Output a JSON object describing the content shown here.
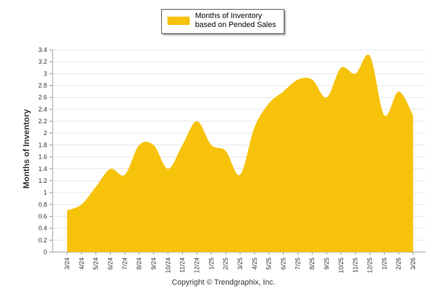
{
  "chart_data": {
    "type": "area",
    "title": "",
    "xlabel": "",
    "ylabel": "Months of Inventory",
    "ylim": [
      0,
      3.4
    ],
    "yticks": [
      "0",
      "0.2",
      "0.4",
      "0.6",
      "0.8",
      "1",
      "1.2",
      "1.4",
      "1.6",
      "1.8",
      "2",
      "2.2",
      "2.4",
      "2.6",
      "2.8",
      "3",
      "3.2",
      "3.4"
    ],
    "categories": [
      "3/24",
      "4/24",
      "5/24",
      "6/24",
      "7/24",
      "8/24",
      "9/24",
      "10/24",
      "11/24",
      "12/24",
      "1/25",
      "2/25",
      "3/25",
      "4/25",
      "5/25",
      "6/25",
      "7/25",
      "8/25",
      "9/25",
      "10/25",
      "11/25",
      "12/25",
      "1/26",
      "2/26",
      "3/26"
    ],
    "series": [
      {
        "name": "Months of Inventory based on Pended Sales",
        "color": "#f7c20a",
        "values": [
          0.7,
          0.8,
          1.1,
          1.4,
          1.3,
          1.8,
          1.8,
          1.4,
          1.8,
          2.2,
          1.8,
          1.7,
          1.3,
          2.1,
          2.5,
          2.7,
          2.9,
          2.9,
          2.6,
          3.1,
          3.0,
          3.3,
          2.3,
          2.7,
          2.3
        ]
      }
    ],
    "legend": {
      "position": "top-center",
      "label": "Months of Inventory based on Pended Sales"
    },
    "grid": true
  },
  "footer": {
    "copyright": "Copyright © Trendgraphix, Inc."
  }
}
